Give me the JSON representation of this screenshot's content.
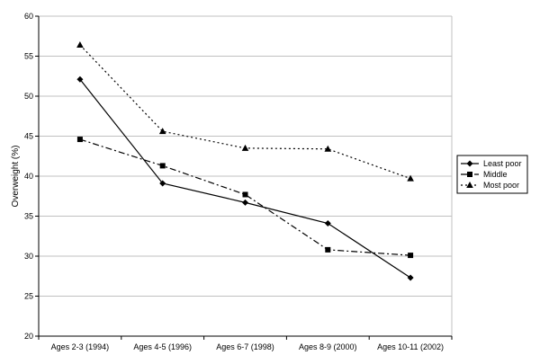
{
  "chart_data": {
    "type": "line",
    "title": "",
    "xlabel": "",
    "ylabel": "Overweight (%)",
    "ylim": [
      20,
      60
    ],
    "yticks": [
      20,
      25,
      30,
      35,
      40,
      45,
      50,
      55,
      60
    ],
    "grid": true,
    "legend_position": "right",
    "categories": [
      "Ages 2-3 (1994)",
      "Ages 4-5  (1996)",
      "Ages 6-7 (1998)",
      "Ages 8-9 (2000)",
      "Ages 10-11 (2002)"
    ],
    "series": [
      {
        "name": "Least poor",
        "values": [
          52.1,
          39.1,
          36.7,
          34.1,
          27.3
        ],
        "marker": "diamond",
        "line": "solid",
        "color": "#000000"
      },
      {
        "name": "Middle",
        "values": [
          44.6,
          41.3,
          37.7,
          30.8,
          30.1
        ],
        "marker": "square",
        "line": "dashdot",
        "color": "#000000"
      },
      {
        "name": "Most poor",
        "values": [
          56.4,
          45.6,
          43.5,
          43.4,
          39.7
        ],
        "marker": "triangle",
        "line": "dotted",
        "color": "#000000"
      }
    ]
  }
}
